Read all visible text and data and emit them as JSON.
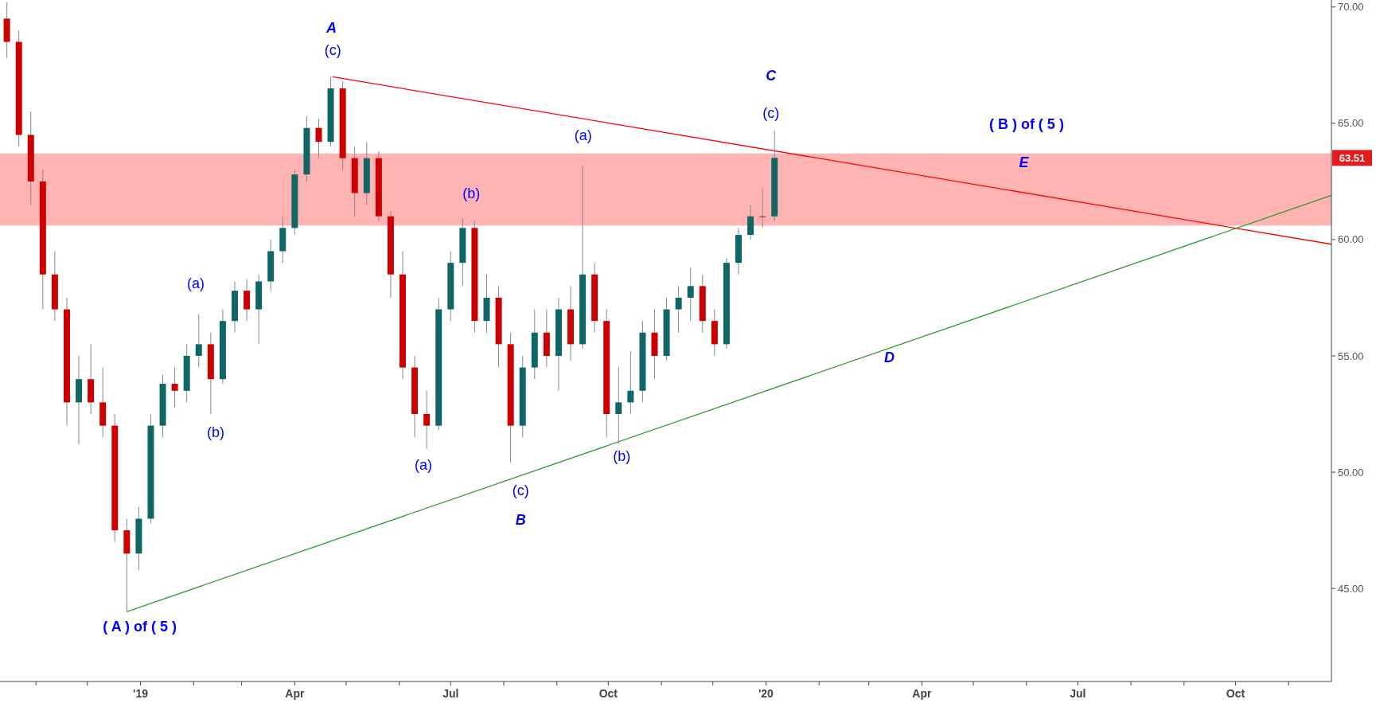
{
  "chart_data": {
    "type": "candlestick",
    "x": [
      "2018-10-15",
      "2018-10-22",
      "2018-10-29",
      "2018-11-05",
      "2018-11-12",
      "2018-11-19",
      "2018-11-26",
      "2018-12-03",
      "2018-12-10",
      "2018-12-17",
      "2018-12-24",
      "2018-12-31",
      "2019-01-07",
      "2019-01-14",
      "2019-01-21",
      "2019-01-28",
      "2019-02-04",
      "2019-02-11",
      "2019-02-18",
      "2019-02-25",
      "2019-03-04",
      "2019-03-11",
      "2019-03-18",
      "2019-03-25",
      "2019-04-01",
      "2019-04-08",
      "2019-04-15",
      "2019-04-22",
      "2019-04-29",
      "2019-05-06",
      "2019-05-13",
      "2019-05-20",
      "2019-05-27",
      "2019-06-03",
      "2019-06-10",
      "2019-06-17",
      "2019-06-24",
      "2019-07-01",
      "2019-07-08",
      "2019-07-15",
      "2019-07-22",
      "2019-07-29",
      "2019-08-05",
      "2019-08-12",
      "2019-08-19",
      "2019-08-26",
      "2019-09-02",
      "2019-09-09",
      "2019-09-16",
      "2019-09-23",
      "2019-09-30",
      "2019-10-07",
      "2019-10-14",
      "2019-10-21",
      "2019-10-28",
      "2019-11-04",
      "2019-11-11",
      "2019-11-18",
      "2019-11-25",
      "2019-12-02",
      "2019-12-09",
      "2019-12-16",
      "2019-12-23",
      "2019-12-30",
      "2020-01-06"
    ],
    "ohlc": [
      [
        69.5,
        70.2,
        67.8,
        68.5
      ],
      [
        68.5,
        69.0,
        64.0,
        64.5
      ],
      [
        64.5,
        65.5,
        61.5,
        62.5
      ],
      [
        62.5,
        63.0,
        57.0,
        58.5
      ],
      [
        58.5,
        59.5,
        56.5,
        57.0
      ],
      [
        57.0,
        57.5,
        52.0,
        53.0
      ],
      [
        53.0,
        55.0,
        51.2,
        54.0
      ],
      [
        54.0,
        55.5,
        52.5,
        53.0
      ],
      [
        53.0,
        54.5,
        51.5,
        52.0
      ],
      [
        52.0,
        52.5,
        47.0,
        47.5
      ],
      [
        47.5,
        48.0,
        44.0,
        46.5
      ],
      [
        46.5,
        48.5,
        45.8,
        48.0
      ],
      [
        48.0,
        52.5,
        47.8,
        52.0
      ],
      [
        52.0,
        54.2,
        51.5,
        53.8
      ],
      [
        53.8,
        54.5,
        52.8,
        53.5
      ],
      [
        53.5,
        55.5,
        53.0,
        55.0
      ],
      [
        55.0,
        56.8,
        54.5,
        55.5
      ],
      [
        55.5,
        56.0,
        52.5,
        54.0
      ],
      [
        54.0,
        57.0,
        53.8,
        56.5
      ],
      [
        56.5,
        58.2,
        56.0,
        57.8
      ],
      [
        57.8,
        58.3,
        56.5,
        57.0
      ],
      [
        57.0,
        58.5,
        55.5,
        58.2
      ],
      [
        58.2,
        60.0,
        57.8,
        59.5
      ],
      [
        59.5,
        61.0,
        59.0,
        60.5
      ],
      [
        60.5,
        63.0,
        60.2,
        62.8
      ],
      [
        62.8,
        65.3,
        62.5,
        64.8
      ],
      [
        64.8,
        65.2,
        63.5,
        64.2
      ],
      [
        64.2,
        67.0,
        64.0,
        66.5
      ],
      [
        66.5,
        66.8,
        63.0,
        63.5
      ],
      [
        63.5,
        64.0,
        61.0,
        62.0
      ],
      [
        62.0,
        64.2,
        61.5,
        63.5
      ],
      [
        63.5,
        63.8,
        60.8,
        61.0
      ],
      [
        61.0,
        61.2,
        57.5,
        58.5
      ],
      [
        58.5,
        59.5,
        54.0,
        54.5
      ],
      [
        54.5,
        55.0,
        51.5,
        52.5
      ],
      [
        52.5,
        53.5,
        51.0,
        52.0
      ],
      [
        52.0,
        57.5,
        51.8,
        57.0
      ],
      [
        57.0,
        59.5,
        56.5,
        59.0
      ],
      [
        59.0,
        60.9,
        58.0,
        60.5
      ],
      [
        60.5,
        60.8,
        56.0,
        56.5
      ],
      [
        56.5,
        58.5,
        56.0,
        57.5
      ],
      [
        57.5,
        58.0,
        54.5,
        55.5
      ],
      [
        55.5,
        56.0,
        50.4,
        52.0
      ],
      [
        52.0,
        55.0,
        51.5,
        54.5
      ],
      [
        54.5,
        57.0,
        54.0,
        56.0
      ],
      [
        56.0,
        57.0,
        54.5,
        55.0
      ],
      [
        55.0,
        57.5,
        53.5,
        57.0
      ],
      [
        57.0,
        58.0,
        54.8,
        55.5
      ],
      [
        55.5,
        63.2,
        55.3,
        58.5
      ],
      [
        58.5,
        59.0,
        56.0,
        56.5
      ],
      [
        56.5,
        57.0,
        51.5,
        52.5
      ],
      [
        52.5,
        54.5,
        51.2,
        53.0
      ],
      [
        53.0,
        55.2,
        52.5,
        53.5
      ],
      [
        53.5,
        56.5,
        53.0,
        56.0
      ],
      [
        56.0,
        57.0,
        54.0,
        55.0
      ],
      [
        55.0,
        57.5,
        54.8,
        57.0
      ],
      [
        57.0,
        58.0,
        56.0,
        57.5
      ],
      [
        57.5,
        58.8,
        56.5,
        58.0
      ],
      [
        58.0,
        58.5,
        56.0,
        56.5
      ],
      [
        56.5,
        57.0,
        55.0,
        55.5
      ],
      [
        55.5,
        59.2,
        55.3,
        59.0
      ],
      [
        59.0,
        60.5,
        58.5,
        60.2
      ],
      [
        60.2,
        61.5,
        60.0,
        61.0
      ],
      [
        61.0,
        62.2,
        60.5,
        61.0
      ],
      [
        61.0,
        64.7,
        60.8,
        63.51
      ]
    ],
    "colors": [
      "#cc0000",
      "#cc0000",
      "#cc0000",
      "#cc0000",
      "#cc0000",
      "#cc0000",
      "#0e6666",
      "#cc0000",
      "#cc0000",
      "#cc0000",
      "#cc0000",
      "#0e6666",
      "#0e6666",
      "#0e6666",
      "#cc0000",
      "#0e6666",
      "#0e6666",
      "#cc0000",
      "#0e6666",
      "#0e6666",
      "#cc0000",
      "#0e6666",
      "#0e6666",
      "#0e6666",
      "#0e6666",
      "#0e6666",
      "#cc0000",
      "#0e6666",
      "#cc0000",
      "#cc0000",
      "#0e6666",
      "#cc0000",
      "#cc0000",
      "#cc0000",
      "#cc0000",
      "#cc0000",
      "#0e6666",
      "#0e6666",
      "#0e6666",
      "#cc0000",
      "#0e6666",
      "#cc0000",
      "#cc0000",
      "#0e6666",
      "#0e6666",
      "#cc0000",
      "#0e6666",
      "#cc0000",
      "#0e6666",
      "#cc0000",
      "#cc0000",
      "#0e6666",
      "#0e6666",
      "#0e6666",
      "#cc0000",
      "#0e6666",
      "#0e6666",
      "#0e6666",
      "#cc0000",
      "#cc0000",
      "#0e6666",
      "#0e6666",
      "#0e6666",
      "#cc0000",
      "#0e6666"
    ],
    "series": [
      {
        "type": "line",
        "x": [
          "2019-04-23",
          "2020-11-26"
        ],
        "values": [
          67.0,
          59.8
        ],
        "color": "#ff0000"
      },
      {
        "type": "line",
        "x": [
          "2018-12-24",
          "2020-11-26"
        ],
        "values": [
          44.0,
          61.9
        ],
        "color": "#2e9a2e"
      }
    ],
    "bands": [
      {
        "axis": "y",
        "from": 60.6,
        "to": 63.7,
        "color": "#ffb3b3"
      }
    ],
    "annotations": [
      "A",
      "(c)",
      "(a)",
      "(b)",
      "( A ) of ( 5 )",
      "(a)",
      "(b)",
      "(c)",
      "B",
      "(a)",
      "(b)",
      "C",
      "(c)",
      "( B ) of ( 5 )",
      "E",
      "D",
      "63.51"
    ],
    "xlim": [
      "2018-10-11",
      "2020-11-26"
    ],
    "xticks": [
      {
        "value": "2018-11-01",
        "label": null
      },
      {
        "value": "2018-12-01",
        "label": null
      },
      {
        "value": "2019-01-01",
        "label": "'19"
      },
      {
        "value": "2019-02-01",
        "label": null
      },
      {
        "value": "2019-03-01",
        "label": null
      },
      {
        "value": "2019-04-01",
        "label": "Apr"
      },
      {
        "value": "2019-05-01",
        "label": null
      },
      {
        "value": "2019-06-01",
        "label": null
      },
      {
        "value": "2019-07-01",
        "label": "Jul"
      },
      {
        "value": "2019-08-01",
        "label": null
      },
      {
        "value": "2019-09-01",
        "label": null
      },
      {
        "value": "2019-10-01",
        "label": "Oct"
      },
      {
        "value": "2019-11-01",
        "label": null
      },
      {
        "value": "2019-12-01",
        "label": null
      },
      {
        "value": "2020-01-01",
        "label": "'20"
      },
      {
        "value": "2020-02-01",
        "label": null
      },
      {
        "value": "2020-03-01",
        "label": null
      },
      {
        "value": "2020-04-01",
        "label": "Apr"
      },
      {
        "value": "2020-05-01",
        "label": null
      },
      {
        "value": "2020-06-01",
        "label": null
      },
      {
        "value": "2020-07-01",
        "label": "Jul"
      },
      {
        "value": "2020-08-01",
        "label": null
      },
      {
        "value": "2020-09-01",
        "label": null
      },
      {
        "value": "2020-10-01",
        "label": "Oct"
      },
      {
        "value": "2020-11-01",
        "label": null
      }
    ],
    "ylim": [
      41,
      70.3
    ],
    "yticks": [
      {
        "value": 45,
        "label": "45.00"
      },
      {
        "value": 50,
        "label": "50.00"
      },
      {
        "value": 55,
        "label": "55.00"
      },
      {
        "value": 60,
        "label": "60.00"
      },
      {
        "value": 65,
        "label": "65.00"
      },
      {
        "value": 70,
        "label": "70.00"
      }
    ],
    "grid": false
  }
}
